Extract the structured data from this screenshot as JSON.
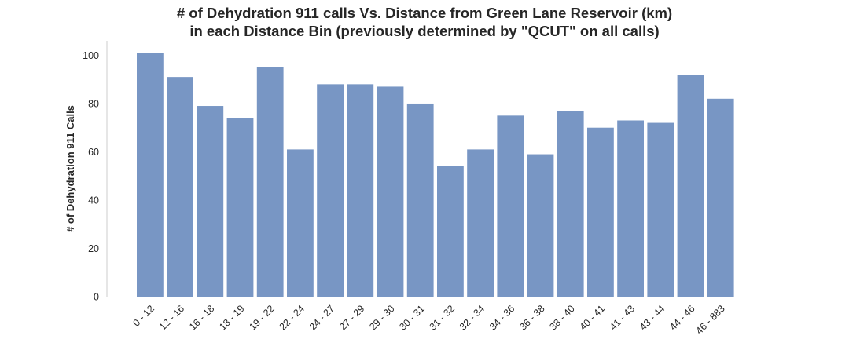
{
  "chart_data": {
    "type": "bar",
    "title_lines": [
      "# of Dehydration 911 calls Vs. Distance from Green Lane Reservoir (km)",
      "in each Distance Bin (previously determined by \"QCUT\" on all calls)"
    ],
    "xlabel": "",
    "ylabel": "# of Dehydration 911 Calls",
    "categories": [
      "0 - 12",
      "12 - 16",
      "16 - 18",
      "18 - 19",
      "19 - 22",
      "22 - 24",
      "24 - 27",
      "27 - 29",
      "29 - 30",
      "30 - 31",
      "31 - 32",
      "32 - 34",
      "34 - 36",
      "36 - 38",
      "38 - 40",
      "40 - 41",
      "41 - 43",
      "43 - 44",
      "44 - 46",
      "46 - 883"
    ],
    "values": [
      101,
      91,
      79,
      74,
      95,
      61,
      88,
      88,
      87,
      80,
      54,
      61,
      75,
      59,
      77,
      70,
      73,
      72,
      92,
      82
    ],
    "ylim": [
      0,
      106
    ],
    "yticks": [
      0,
      20,
      40,
      60,
      80,
      100
    ],
    "grid": false,
    "bar_color": "#7896c4",
    "axis_color": "#cccccc",
    "text_color": "#262626"
  }
}
